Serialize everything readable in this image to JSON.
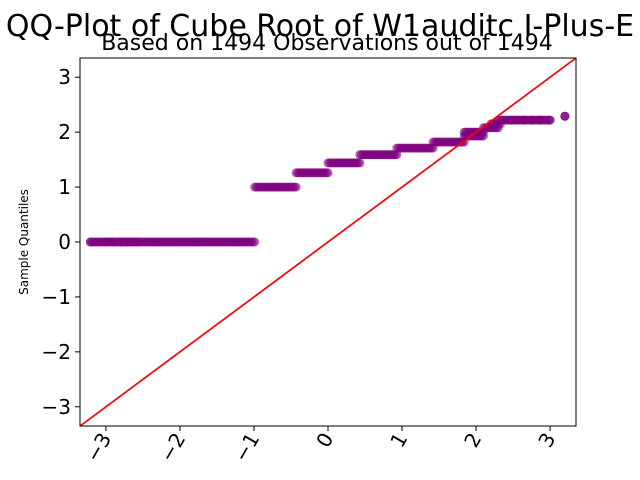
{
  "chart_data": {
    "type": "scatter",
    "title": "QQ-Plot of Cube Root of W1auditc I-Plus-E",
    "subtitle": "Based on 1494 Observations out of 1494",
    "xlabel": "",
    "ylabel": "Sample Quantiles",
    "xlim": [
      -3.35,
      3.35
    ],
    "ylim": [
      -3.35,
      3.35
    ],
    "x_ticks": [
      -3,
      -2,
      -1,
      0,
      1,
      2,
      3
    ],
    "y_ticks": [
      -3,
      -2,
      -1,
      0,
      1,
      2,
      3
    ],
    "x_tick_labels": [
      "−3",
      "−2",
      "−1",
      "0",
      "1",
      "2",
      "3"
    ],
    "y_tick_labels": [
      "−3",
      "−2",
      "−1",
      "0",
      "1",
      "2",
      "3"
    ],
    "grid": false,
    "reference_line": {
      "slope": 1,
      "intercept": 0,
      "color": "#ff0000"
    },
    "point_color": "#800080",
    "series": [
      {
        "segments": [
          {
            "y": 0.0,
            "x_start": -3.21,
            "x_end": -0.99
          },
          {
            "y": 1.0,
            "x_start": -0.99,
            "x_end": -0.43
          },
          {
            "y": 1.26,
            "x_start": -0.43,
            "x_end": 0.0
          },
          {
            "y": 1.44,
            "x_start": 0.0,
            "x_end": 0.43
          },
          {
            "y": 1.59,
            "x_start": 0.43,
            "x_end": 0.93
          },
          {
            "y": 1.71,
            "x_start": 0.93,
            "x_end": 1.42
          },
          {
            "y": 1.82,
            "x_start": 1.42,
            "x_end": 1.84
          },
          {
            "y": 1.93,
            "x_start": 1.84,
            "x_end": 2.1
          },
          {
            "y": 2.0,
            "x_start": 1.84,
            "x_end": 2.1
          },
          {
            "y": 2.08,
            "x_start": 2.1,
            "x_end": 2.3
          },
          {
            "y": 2.15,
            "x_start": 2.2,
            "x_end": 2.33
          },
          {
            "y": 2.22,
            "x_start": 2.3,
            "x_end": 3.0
          },
          {
            "y": 2.29,
            "x_start": 3.2,
            "x_end": 3.2
          }
        ],
        "sparse_points": [
          [
            -3.21,
            0.0
          ],
          [
            -3.0,
            0.0
          ],
          [
            -2.9,
            0.0
          ],
          [
            -2.8,
            0.0
          ],
          [
            -2.72,
            0.0
          ],
          [
            -2.65,
            0.0
          ],
          [
            -2.58,
            0.0
          ],
          [
            2.48,
            2.22
          ],
          [
            2.55,
            2.22
          ],
          [
            2.65,
            2.22
          ],
          [
            2.75,
            2.22
          ],
          [
            2.86,
            2.22
          ],
          [
            3.0,
            2.22
          ],
          [
            3.2,
            2.29
          ]
        ]
      }
    ]
  }
}
